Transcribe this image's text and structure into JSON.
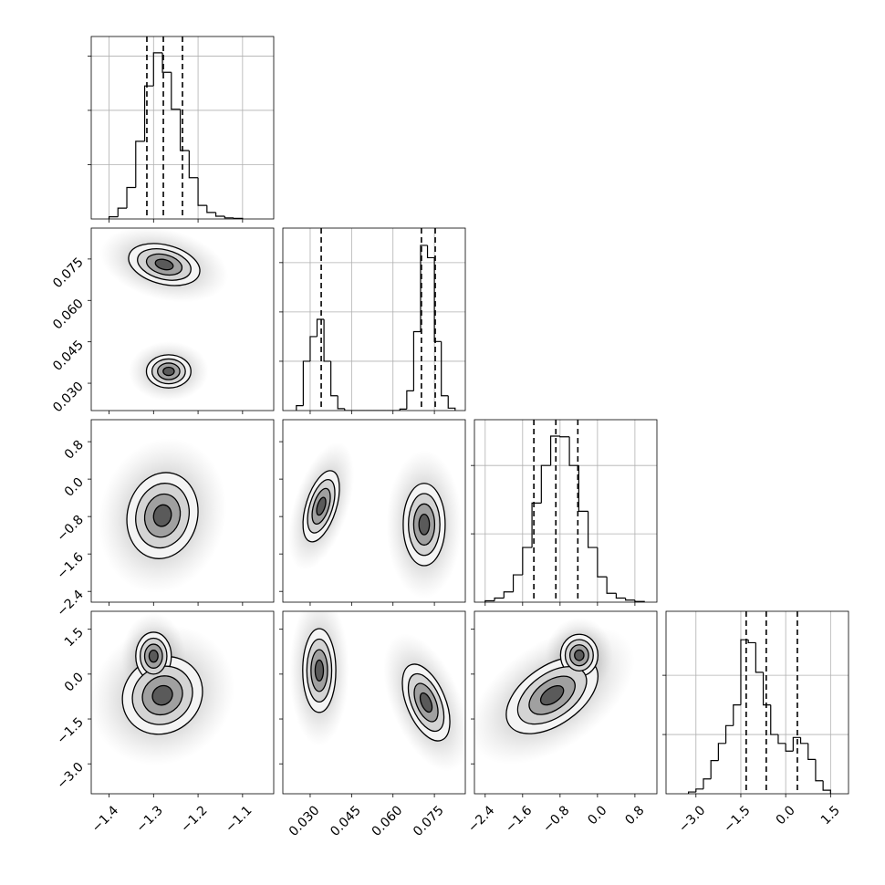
{
  "chart_data": {
    "type": "corner",
    "grid": true,
    "line_color": "#000000",
    "parameters": [
      {
        "lim": [
          -1.44,
          -1.03
        ],
        "ticks": [
          {
            "value": -1.4,
            "label": "−1.4"
          },
          {
            "value": -1.3,
            "label": "−1.3"
          },
          {
            "value": -1.2,
            "label": "−1.2"
          },
          {
            "value": -1.1,
            "label": "−1.1"
          }
        ]
      },
      {
        "lim": [
          0.0201,
          0.0862
        ],
        "ticks": [
          {
            "value": 0.03,
            "label": "0.030"
          },
          {
            "value": 0.045,
            "label": "0.045"
          },
          {
            "value": 0.06,
            "label": "0.060"
          },
          {
            "value": 0.075,
            "label": "0.075"
          }
        ]
      },
      {
        "lim": [
          -2.63,
          1.27
        ],
        "ticks": [
          {
            "value": -2.4,
            "label": "−2.4"
          },
          {
            "value": -1.6,
            "label": "−1.6"
          },
          {
            "value": -0.8,
            "label": "−0.8"
          },
          {
            "value": 0,
            "label": "0.0"
          },
          0.8
        ]
      },
      {
        "lim": [
          -4.0,
          2.1
        ],
        "ticks": [
          {
            "value": -3.0,
            "label": "−3.0"
          },
          {
            "value": -1.5,
            "label": "−1.5"
          },
          {
            "value": 0,
            "label": "0.0"
          },
          1.5
        ]
      }
    ],
    "histograms": [
      {
        "bins": [
          -1.4,
          -1.38,
          -1.36,
          -1.34,
          -1.32,
          -1.3,
          -1.28,
          -1.26,
          -1.24,
          -1.22,
          -1.2,
          -1.18,
          -1.16,
          -1.14,
          -1.12,
          -1.1
        ],
        "counts": [
          40,
          200,
          580,
          1430,
          2450,
          3060,
          2700,
          2020,
          1260,
          760,
          250,
          120,
          50,
          20,
          10
        ],
        "ylim": [
          0,
          3360
        ],
        "yticks": [
          1000,
          2000,
          3000
        ],
        "quantiles": [
          -1.315,
          -1.278,
          -1.235
        ]
      },
      {
        "bins": [
          0.025,
          0.0275,
          0.03,
          0.0325,
          0.035,
          0.0375,
          0.04,
          0.0425,
          0.045,
          0.0475,
          0.05,
          0.0525,
          0.055,
          0.0575,
          0.06,
          0.0625,
          0.065,
          0.0675,
          0.07,
          0.0725,
          0.075,
          0.0775,
          0.08,
          0.0825
        ],
        "counts": [
          100,
          1000,
          1500,
          1850,
          1000,
          300,
          40,
          0,
          0,
          0,
          0,
          0,
          0,
          0,
          0,
          30,
          400,
          1600,
          3350,
          3100,
          1400,
          300,
          50
        ],
        "ylim": [
          0,
          3700
        ],
        "yticks": [
          1000,
          2000,
          3000
        ],
        "quantiles": [
          0.034,
          0.0703,
          0.0753
        ]
      },
      {
        "bins": [
          -2.4,
          -2.2,
          -2.0,
          -1.8,
          -1.6,
          -1.4,
          -1.2,
          -1.0,
          -0.8,
          -0.6,
          -0.4,
          -0.2,
          0,
          0.2,
          0.4,
          0.6,
          0.8,
          1.0
        ],
        "counts": [
          20,
          60,
          150,
          400,
          800,
          1450,
          2000,
          2430,
          2420,
          2000,
          1330,
          800,
          370,
          130,
          60,
          30,
          10
        ],
        "ylim": [
          0,
          2670
        ],
        "yticks": [
          1000,
          2000
        ],
        "quantiles": [
          -1.36,
          -0.89,
          -0.42
        ]
      },
      {
        "bins": [
          -3.25,
          -3.0,
          -2.75,
          -2.5,
          -2.25,
          -2.0,
          -1.75,
          -1.5,
          -1.25,
          -1.0,
          -0.75,
          -0.5,
          -0.25,
          0,
          0.25,
          0.5,
          0.75,
          1.0,
          1.25,
          1.5
        ],
        "counts": [
          30,
          80,
          250,
          560,
          850,
          1150,
          1500,
          2600,
          2550,
          2050,
          1500,
          1000,
          850,
          720,
          950,
          850,
          580,
          220,
          60
        ],
        "ylim": [
          0,
          3080
        ],
        "yticks": [
          1000,
          2000
        ],
        "quantiles": [
          -1.32,
          -0.65,
          0.39
        ]
      }
    ],
    "panels": [
      {
        "clusters": [
          {
            "cx": -1.276,
            "cy": 0.073,
            "sx": 0.04,
            "sy": 0.0038,
            "rho": -0.3
          },
          {
            "cx": -1.266,
            "cy": 0.0343,
            "sx": 0.025,
            "sy": 0.003,
            "rho": 0
          }
        ]
      },
      {
        "clusters": [
          {
            "cx": -1.28,
            "cy": -0.78,
            "sx": 0.04,
            "sy": 0.46,
            "rho": 0.1
          }
        ]
      },
      {
        "clusters": [
          {
            "cx": 0.034,
            "cy": -0.58,
            "sx": 0.0033,
            "sy": 0.38,
            "rho": 0.5
          },
          {
            "cx": 0.0713,
            "cy": -0.97,
            "sx": 0.0038,
            "sy": 0.44,
            "rho": 0
          }
        ]
      },
      {
        "clusters": [
          {
            "cx": -1.28,
            "cy": -0.71,
            "sx": 0.045,
            "sy": 0.65,
            "rho": 0.1
          },
          {
            "cx": -1.3,
            "cy": 0.6,
            "sx": 0.02,
            "sy": 0.4,
            "rho": 0
          }
        ]
      },
      {
        "clusters": [
          {
            "cx": 0.0333,
            "cy": 0.12,
            "sx": 0.003,
            "sy": 0.7,
            "rho": 0
          },
          {
            "cx": 0.072,
            "cy": -0.95,
            "sx": 0.0043,
            "sy": 0.64,
            "rho": -0.5
          }
        ]
      },
      {
        "clusters": [
          {
            "cx": -0.97,
            "cy": -0.71,
            "sx": 0.49,
            "sy": 0.64,
            "rho": 0.5
          },
          {
            "cx": -0.39,
            "cy": 0.63,
            "sx": 0.2,
            "sy": 0.35,
            "rho": 0
          }
        ]
      }
    ]
  }
}
